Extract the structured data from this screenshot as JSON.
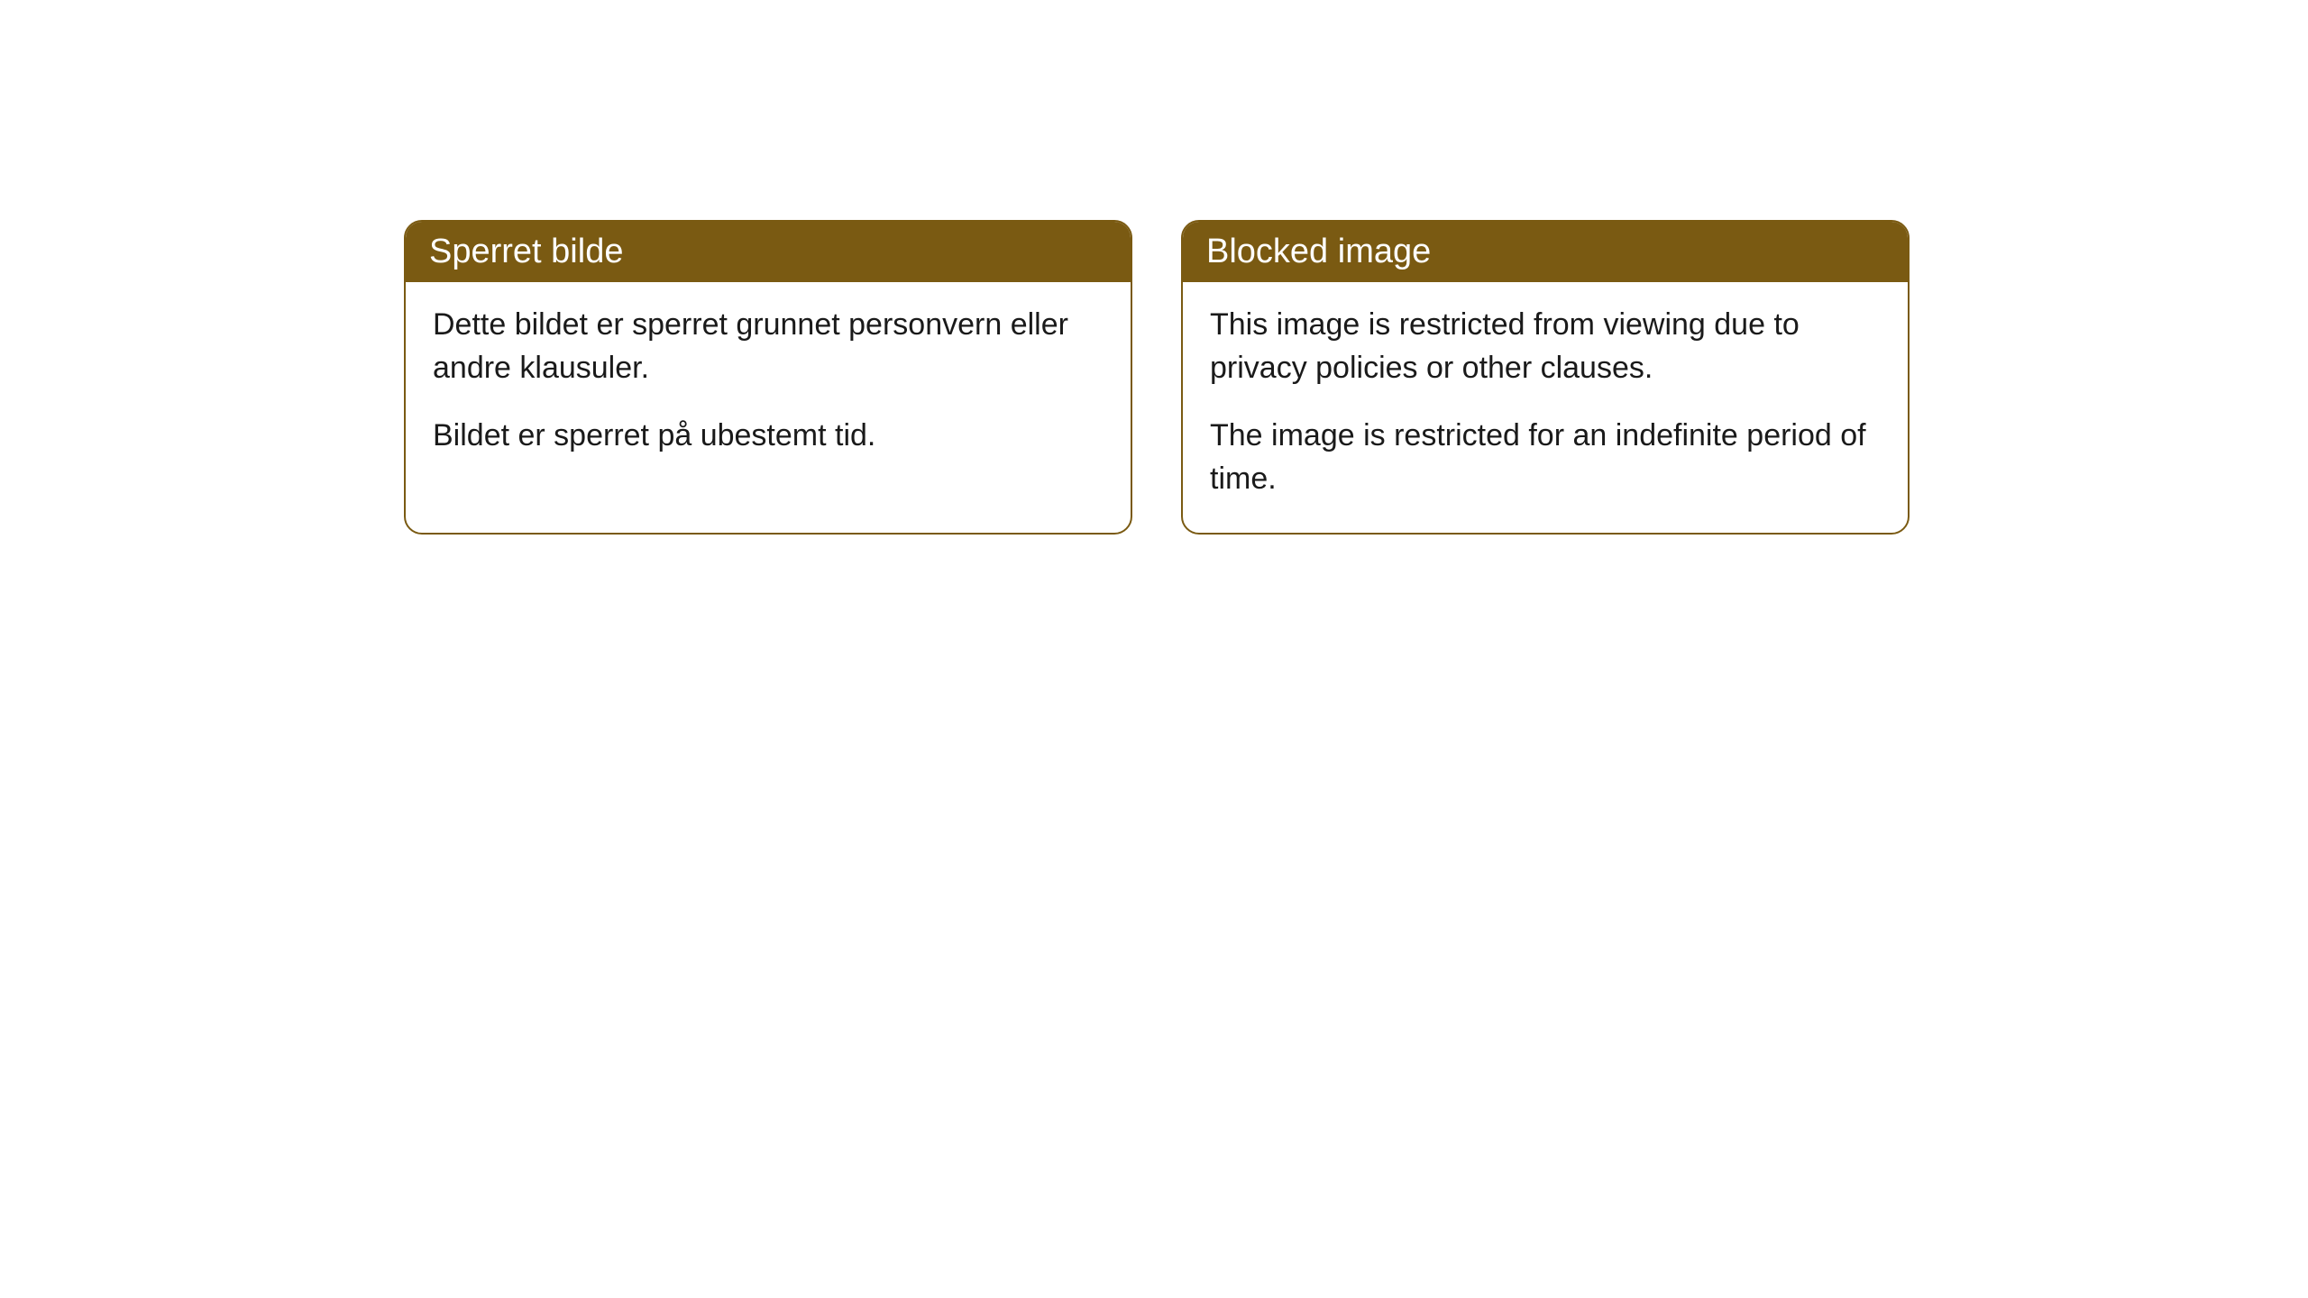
{
  "cards": [
    {
      "title": "Sperret bilde",
      "paragraph1": "Dette bildet er sperret grunnet personvern eller andre klausuler.",
      "paragraph2": "Bildet er sperret på ubestemt tid."
    },
    {
      "title": "Blocked image",
      "paragraph1": "This image is restricted from viewing due to privacy policies or other clauses.",
      "paragraph2": "The image is restricted for an indefinite period of time."
    }
  ],
  "style": {
    "header_bg": "#7a5a12",
    "header_text": "#ffffff",
    "border_color": "#7a5a12",
    "body_bg": "#ffffff",
    "body_text": "#1a1a1a",
    "border_radius": 20,
    "title_fontsize": 38,
    "body_fontsize": 34
  }
}
